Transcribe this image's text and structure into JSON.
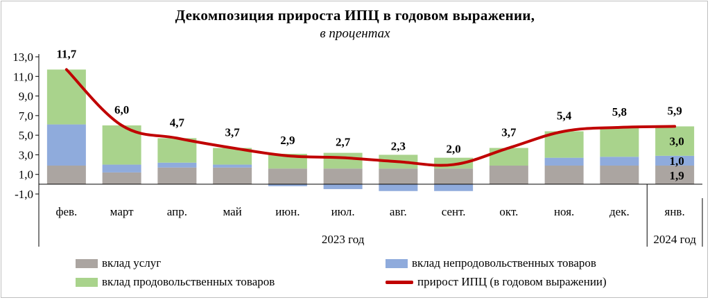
{
  "title": "Декомпозиция прироста ИПЦ  в годовом выражении,",
  "subtitle": "в процентах",
  "colors": {
    "services": "#aba5a1",
    "nonfood": "#8fabdc",
    "food": "#a9d38c",
    "cpi": "#c00000"
  },
  "chart_data": {
    "type": "bar",
    "title": "Декомпозиция прироста ИПЦ  в годовом выражении,",
    "subtitle": "в процентах",
    "categories": [
      "фев.",
      "март",
      "апр.",
      "май",
      "июн.",
      "июл.",
      "авг.",
      "сент.",
      "окт.",
      "ноя.",
      "дек.",
      "янв."
    ],
    "year_groups": [
      {
        "label": "2023 год",
        "start": 0,
        "end": 10
      },
      {
        "label": "2024 год",
        "start": 11,
        "end": 11
      }
    ],
    "ylim": [
      -1,
      13
    ],
    "yticks": [
      "-1,0",
      "1,0",
      "3,0",
      "5,0",
      "7,0",
      "9,0",
      "11,0",
      "13,0"
    ],
    "ytick_values": [
      -1,
      1,
      3,
      5,
      7,
      9,
      11,
      13
    ],
    "stacked": true,
    "series": [
      {
        "name": "вклад услуг",
        "kind": "bar",
        "values": [
          1.9,
          1.2,
          1.7,
          1.7,
          1.6,
          1.6,
          1.6,
          1.6,
          1.9,
          1.9,
          1.9,
          1.9
        ]
      },
      {
        "name": "вклад непродовольственных товаров",
        "kind": "bar",
        "values": [
          4.2,
          0.8,
          0.5,
          0.3,
          -0.2,
          -0.5,
          -0.7,
          -0.7,
          0.0,
          0.8,
          0.9,
          1.0
        ]
      },
      {
        "name": "вклад продовольственных товаров",
        "kind": "bar",
        "values": [
          5.6,
          4.0,
          2.5,
          1.7,
          1.5,
          1.6,
          1.4,
          1.1,
          1.8,
          2.7,
          3.0,
          3.0
        ]
      },
      {
        "name": "прирост ИПЦ (в годовом выражении)",
        "kind": "line",
        "values": [
          11.7,
          6.0,
          4.7,
          3.7,
          2.9,
          2.7,
          2.3,
          2.0,
          3.7,
          5.4,
          5.8,
          5.9
        ]
      }
    ],
    "line_labels": [
      "11,7",
      "6,0",
      "4,7",
      "3,7",
      "2,9",
      "2,7",
      "2,3",
      "2,0",
      "3,7",
      "5,4",
      "5,8",
      "5,9"
    ],
    "last_bar_labels": {
      "food": "3,0",
      "nonfood": "1,0",
      "services": "1,9"
    },
    "legend": [
      {
        "label": "вклад услуг",
        "key": "services",
        "kind": "bar"
      },
      {
        "label": "вклад непродовольственных товаров",
        "key": "nonfood",
        "kind": "bar"
      },
      {
        "label": "вклад продовольственных товаров",
        "key": "food",
        "kind": "bar"
      },
      {
        "label": "прирост ИПЦ (в годовом выражении)",
        "key": "cpi",
        "kind": "line"
      }
    ],
    "legend_position": "bottom"
  }
}
